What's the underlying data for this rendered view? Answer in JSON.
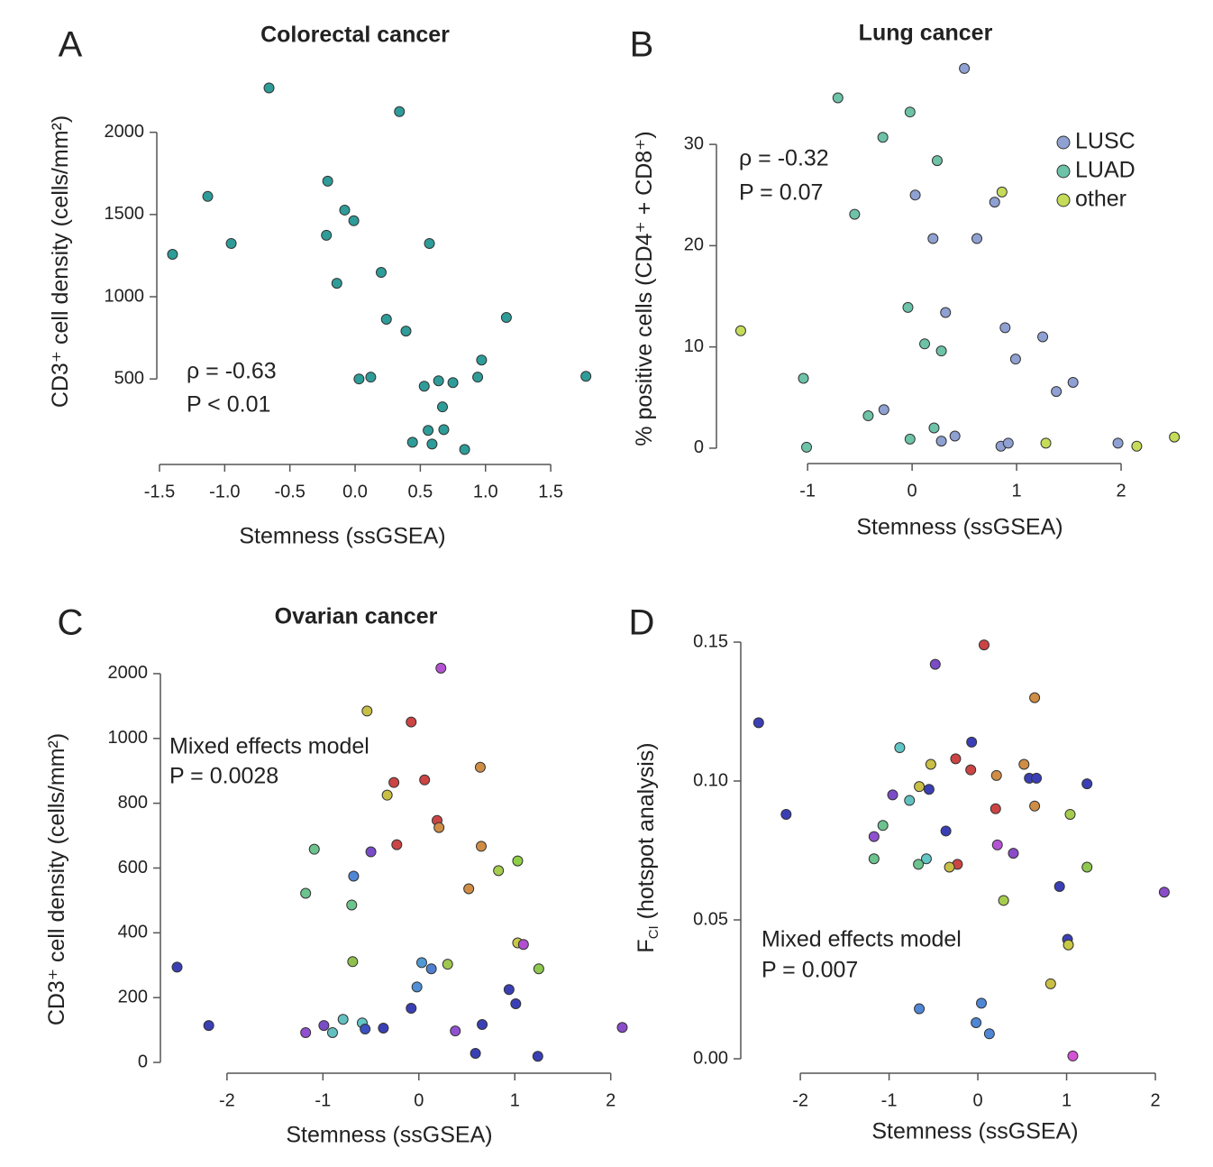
{
  "chart_data": [
    {
      "type": "scatter",
      "panel": "A",
      "title": "Colorectal cancer",
      "xlabel": "Stemness (ssGSEA)",
      "ylabel": "CD3⁺ cell density (cells/mm²)",
      "xlim": [
        -1.6,
        1.9
      ],
      "ylim": [
        -20,
        2300
      ],
      "xticks": [
        -1.5,
        {
          "value": -1,
          "label": "-1.0"
        },
        -0.5,
        {
          "value": 0,
          "label": "0.0"
        },
        0.5,
        {
          "value": 1,
          "label": "1.0"
        },
        1.5
      ],
      "yticks": [
        500,
        1000,
        1500,
        2000
      ],
      "annotation": [
        "ρ = -0.63",
        "P < 0.01"
      ],
      "series": [
        {
          "color": "#2e9c98",
          "x": [
            -0.66,
            0.34,
            -1.13,
            -1.4,
            -0.95,
            -0.21,
            -0.08,
            -0.01,
            -0.22,
            0.57,
            0.2,
            -0.14,
            0.24,
            0.39,
            1.16,
            0.97,
            1.77,
            0.03,
            0.12,
            0.53,
            0.64,
            0.75,
            0.94,
            0.67,
            0.56,
            0.68,
            0.44,
            0.59,
            0.84
          ],
          "values": [
            2270,
            2126,
            1610,
            1258,
            1324,
            1703,
            1527,
            1462,
            1374,
            1324,
            1148,
            1082,
            863,
            791,
            874,
            615,
            516,
            500,
            511,
            456,
            489,
            478,
            511,
            330,
            187,
            192,
            115,
            104,
            71
          ]
        }
      ]
    },
    {
      "type": "scatter",
      "panel": "B",
      "title": "Lung cancer",
      "xlabel": "Stemness (ssGSEA)",
      "ylabel": "% positive cells (CD4⁺ + CD8⁺)",
      "xlim": [
        -1.7,
        2.6
      ],
      "ylim": [
        -1.5,
        38
      ],
      "xticks": [
        -1,
        0,
        1,
        2
      ],
      "yticks": [
        0,
        10,
        20,
        30
      ],
      "annotation": [
        "ρ = -0.32",
        "P = 0.07"
      ],
      "legend": "top-right",
      "series": [
        {
          "name": "LUSC",
          "color": "#8fa0d2",
          "x": [
            0.5,
            0.03,
            0.79,
            0.2,
            0.62,
            0.32,
            0.89,
            1.25,
            0.99,
            1.54,
            1.38,
            -0.27,
            0.28,
            0.41,
            0.85,
            0.92,
            1.97
          ],
          "values": [
            37.5,
            25.0,
            24.3,
            20.7,
            20.7,
            13.4,
            11.9,
            11.0,
            8.8,
            6.5,
            5.6,
            3.8,
            0.7,
            1.2,
            0.2,
            0.5,
            0.5
          ]
        },
        {
          "name": "LUAD",
          "color": "#6cc3a8",
          "x": [
            -0.71,
            -0.02,
            -0.28,
            0.24,
            -0.55,
            -0.04,
            0.12,
            0.28,
            -1.04,
            -0.42,
            0.21,
            -1.01,
            -0.02
          ],
          "values": [
            34.6,
            33.2,
            30.7,
            28.4,
            23.1,
            13.9,
            10.3,
            9.6,
            6.9,
            3.2,
            2.0,
            0.1,
            0.9
          ]
        },
        {
          "name": "other",
          "color": "#c5dc5a",
          "x": [
            0.86,
            -1.64,
            1.28,
            2.15,
            2.51
          ],
          "values": [
            25.3,
            11.6,
            0.5,
            0.2,
            1.1
          ]
        }
      ]
    },
    {
      "type": "scatter",
      "panel": "C",
      "title": "Ovarian cancer",
      "xlabel": "Stemness (ssGSEA)",
      "ylabel": "CD3⁺ cell density (cells/mm²)",
      "xlim": [
        -2.6,
        2.2
      ],
      "ylim": [
        -30,
        2200
      ],
      "yscale": "piecewise",
      "xticks": [
        -2,
        -1,
        0,
        1,
        2
      ],
      "yticks": [
        0,
        200,
        400,
        600,
        800,
        1000,
        2000
      ],
      "annotation": [
        "Mixed effects model",
        "P = 0.0028"
      ],
      "series": [
        {
          "x": [
            0.23,
            -0.54,
            -0.08,
            0.64,
            -0.26,
            0.06,
            -0.33,
            0.19,
            0.21,
            -0.23,
            0.65,
            -1.09,
            -0.5,
            -0.68,
            0.83,
            1.03,
            0.52,
            -1.18,
            -0.7,
            -2.52,
            -0.69,
            0.03,
            0.13,
            0.3,
            1.03,
            1.09,
            1.25,
            -0.02,
            0.94,
            -0.08,
            1.01,
            -2.19,
            -0.79,
            -0.59,
            -0.99,
            -1.18,
            -0.9,
            -0.56,
            -0.37,
            0.38,
            0.66,
            2.12,
            0.59,
            1.24
          ],
          "values": [
            2085,
            1423,
            1254,
            911,
            864,
            872,
            825,
            747,
            725,
            672,
            667,
            658,
            650,
            575,
            592,
            622,
            536,
            522,
            486,
            294,
            311,
            308,
            289,
            303,
            369,
            364,
            289,
            233,
            225,
            167,
            181,
            114,
            133,
            122,
            114,
            92,
            92,
            103,
            106,
            97,
            117,
            108,
            28,
            19
          ],
          "colors": [
            "#b552d4",
            "#c9bf45",
            "#cc4444",
            "#d08d45",
            "#cc4444",
            "#cc4444",
            "#c9bf45",
            "#cc4444",
            "#d08d45",
            "#cc4444",
            "#d08d45",
            "#6cc38e",
            "#7a4cc8",
            "#4f86d6",
            "#a6cc4e",
            "#8fcf45",
            "#d08d45",
            "#6cc38e",
            "#6cc38e",
            "#3b3fb5",
            "#8fc04e",
            "#4f9ad6",
            "#4f80d0",
            "#9fc84e",
            "#c9c845",
            "#b050d0",
            "#8fc84e",
            "#4f90d6",
            "#3b3fb5",
            "#3b3fb5",
            "#3b3fb5",
            "#3b3fb5",
            "#62c0c0",
            "#62c6c6",
            "#7a4cc8",
            "#9050d0",
            "#62c0c0",
            "#3b50c0",
            "#3b3fb5",
            "#9050d0",
            "#3b3fb5",
            "#8a4cc8",
            "#3b3fb5",
            "#3b3fb5"
          ]
        }
      ]
    },
    {
      "type": "scatter",
      "panel": "D",
      "xlabel": "Stemness (ssGSEA)",
      "ylabel": "F",
      "ylabel_sub": "CI",
      "ylabel_suffix": " (hotspot analysis)",
      "xlim": [
        -2.6,
        2.3
      ],
      "ylim": [
        -0.005,
        0.16
      ],
      "xticks": [
        -2,
        -1,
        0,
        1,
        2
      ],
      "yticks": [
        {
          "value": 0,
          "label": "0.00"
        },
        0.05,
        {
          "value": 0.1,
          "label": "0.10"
        },
        0.15
      ],
      "annotation": [
        "Mixed effects model",
        "P = 0.007"
      ],
      "series": [
        {
          "x": [
            0.07,
            -0.48,
            0.64,
            -2.47,
            -0.88,
            -0.07,
            -0.25,
            0.52,
            -0.53,
            -0.08,
            0.21,
            0.58,
            0.66,
            1.23,
            -0.96,
            -0.55,
            -0.66,
            -0.77,
            0.64,
            0.2,
            -2.16,
            1.04,
            -1.07,
            -0.36,
            -1.17,
            0.22,
            0.4,
            -1.17,
            -0.58,
            -0.67,
            -0.23,
            -0.32,
            1.23,
            0.92,
            2.1,
            0.29,
            1.01,
            1.02,
            0.82,
            0.04,
            -0.66,
            -0.02,
            0.13,
            1.07
          ],
          "values": [
            0.149,
            0.142,
            0.13,
            0.121,
            0.112,
            0.114,
            0.108,
            0.106,
            0.106,
            0.104,
            0.102,
            0.101,
            0.101,
            0.099,
            0.095,
            0.097,
            0.098,
            0.093,
            0.091,
            0.09,
            0.088,
            0.088,
            0.084,
            0.082,
            0.08,
            0.077,
            0.074,
            0.072,
            0.072,
            0.07,
            0.07,
            0.069,
            0.069,
            0.062,
            0.06,
            0.057,
            0.043,
            0.041,
            0.027,
            0.02,
            0.018,
            0.013,
            0.009,
            0.001
          ],
          "colors": [
            "#cc4444",
            "#7a4cc8",
            "#d08d45",
            "#3b3fb5",
            "#62c6c6",
            "#3b3fb5",
            "#cc4444",
            "#d08d45",
            "#c9bf45",
            "#cc4444",
            "#d08d45",
            "#3b3fb5",
            "#3b3fb5",
            "#3b3fb5",
            "#7a4cc8",
            "#3b3fb5",
            "#c9bf45",
            "#62c0c0",
            "#d08d45",
            "#cc4444",
            "#3b3fb5",
            "#a6cc4e",
            "#6cc38e",
            "#3b3fb5",
            "#9050d0",
            "#b552d4",
            "#8a4cc8",
            "#6cc38e",
            "#62c6c6",
            "#6cc38e",
            "#cc4444",
            "#c9bf45",
            "#8fc84e",
            "#3b3fb5",
            "#8a4cc8",
            "#a6cc4e",
            "#3b3fb5",
            "#c9c845",
            "#c9bf45",
            "#4f86d6",
            "#4f86d6",
            "#4f86d6",
            "#4f86d6",
            "#d452d4"
          ]
        }
      ]
    }
  ]
}
